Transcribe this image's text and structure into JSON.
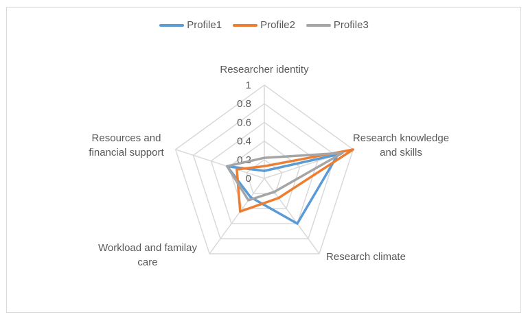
{
  "chart_data": {
    "type": "radar",
    "title": "",
    "categories": [
      "Researcher identity",
      "Research knowledge and skills",
      "Research climate",
      "Workload and familay care",
      "Resources and financial support"
    ],
    "category_lines": [
      [
        "Researcher identity"
      ],
      [
        "Research knowledge",
        "and skills"
      ],
      [
        "Research climate"
      ],
      [
        "Workload and familay",
        "care"
      ],
      [
        "Resources and",
        "financial support"
      ]
    ],
    "rlim": [
      0,
      1
    ],
    "ticks": [
      "0",
      "0.2",
      "0.4",
      "0.6",
      "0.8",
      "1"
    ],
    "tick_values": [
      0,
      0.2,
      0.4,
      0.6,
      0.8,
      1
    ],
    "grid": true,
    "legend_position": "top",
    "series": [
      {
        "name": "Profile1",
        "color": "#5B9BD5",
        "values": [
          0.08,
          0.83,
          0.6,
          0.25,
          0.42
        ]
      },
      {
        "name": "Profile2",
        "color": "#ED7D31",
        "values": [
          0.13,
          1.0,
          0.26,
          0.44,
          0.31
        ]
      },
      {
        "name": "Profile3",
        "color": "#A5A5A5",
        "values": [
          0.22,
          0.88,
          0.18,
          0.29,
          0.42
        ]
      }
    ]
  }
}
